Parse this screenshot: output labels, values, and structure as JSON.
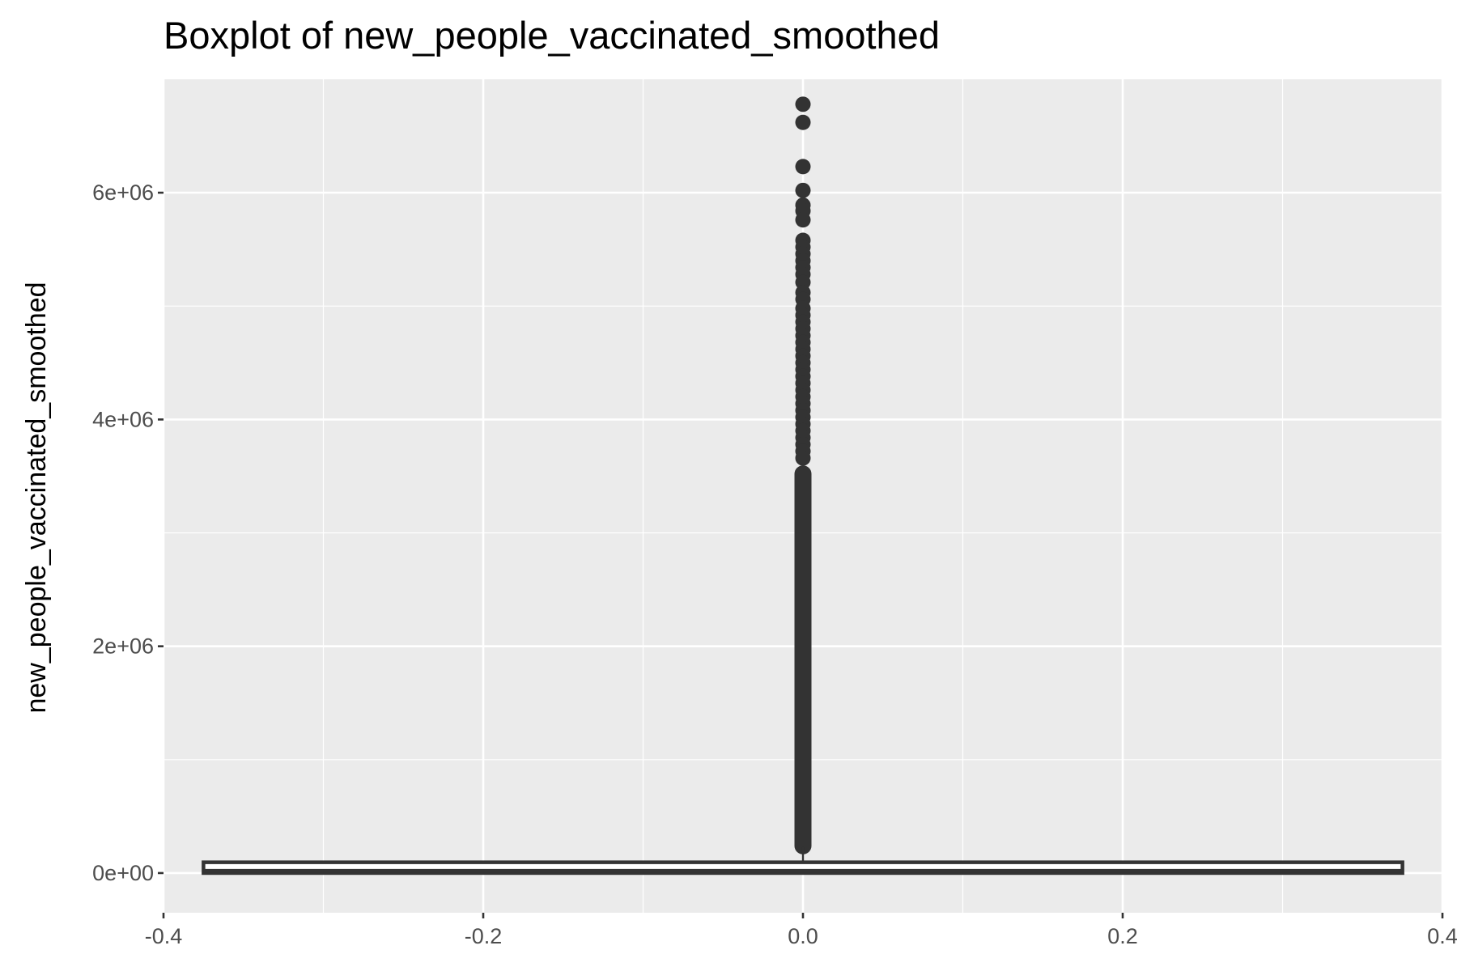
{
  "chart_data": {
    "type": "boxplot",
    "title": "Boxplot of new_people_vaccinated_smoothed",
    "xlabel": "",
    "ylabel": "new_people_vaccinated_smoothed",
    "xlim": [
      -0.4,
      0.4
    ],
    "ylim": [
      -350000,
      7000000
    ],
    "x_ticks": [
      -0.4,
      -0.2,
      0.0,
      0.2,
      0.4
    ],
    "x_tick_labels": [
      "-0.4",
      "-0.2",
      "0.0",
      "0.2",
      "0.4"
    ],
    "y_ticks": [
      0,
      2000000,
      4000000,
      6000000
    ],
    "y_tick_labels": [
      "0e+00",
      "2e+06",
      "4e+06",
      "6e+06"
    ],
    "grid": true,
    "colors": {
      "panel": "#ebebeb",
      "grid": "#ffffff",
      "box": "#333333",
      "box_fill": "#ffffff"
    },
    "box": {
      "x_center": 0.0,
      "x_min": -0.375,
      "x_max": 0.375,
      "lower_whisker": 0,
      "q1": 0,
      "median": 20000,
      "q3": 95000,
      "upper_whisker": 230000
    },
    "outlier_range": [
      240000,
      3520000
    ],
    "outliers": [
      6780000,
      6620000,
      6230000,
      6020000,
      5890000,
      5840000,
      5760000,
      5580000,
      5520000,
      5460000,
      5400000,
      5340000,
      5280000,
      5210000,
      5120000,
      5060000,
      4980000,
      4920000,
      4860000,
      4800000,
      4740000,
      4680000,
      4620000,
      4560000,
      4500000,
      4440000,
      4380000,
      4320000,
      4260000,
      4200000,
      4140000,
      4080000,
      4020000,
      3960000,
      3900000,
      3840000,
      3780000,
      3720000,
      3660000
    ]
  }
}
